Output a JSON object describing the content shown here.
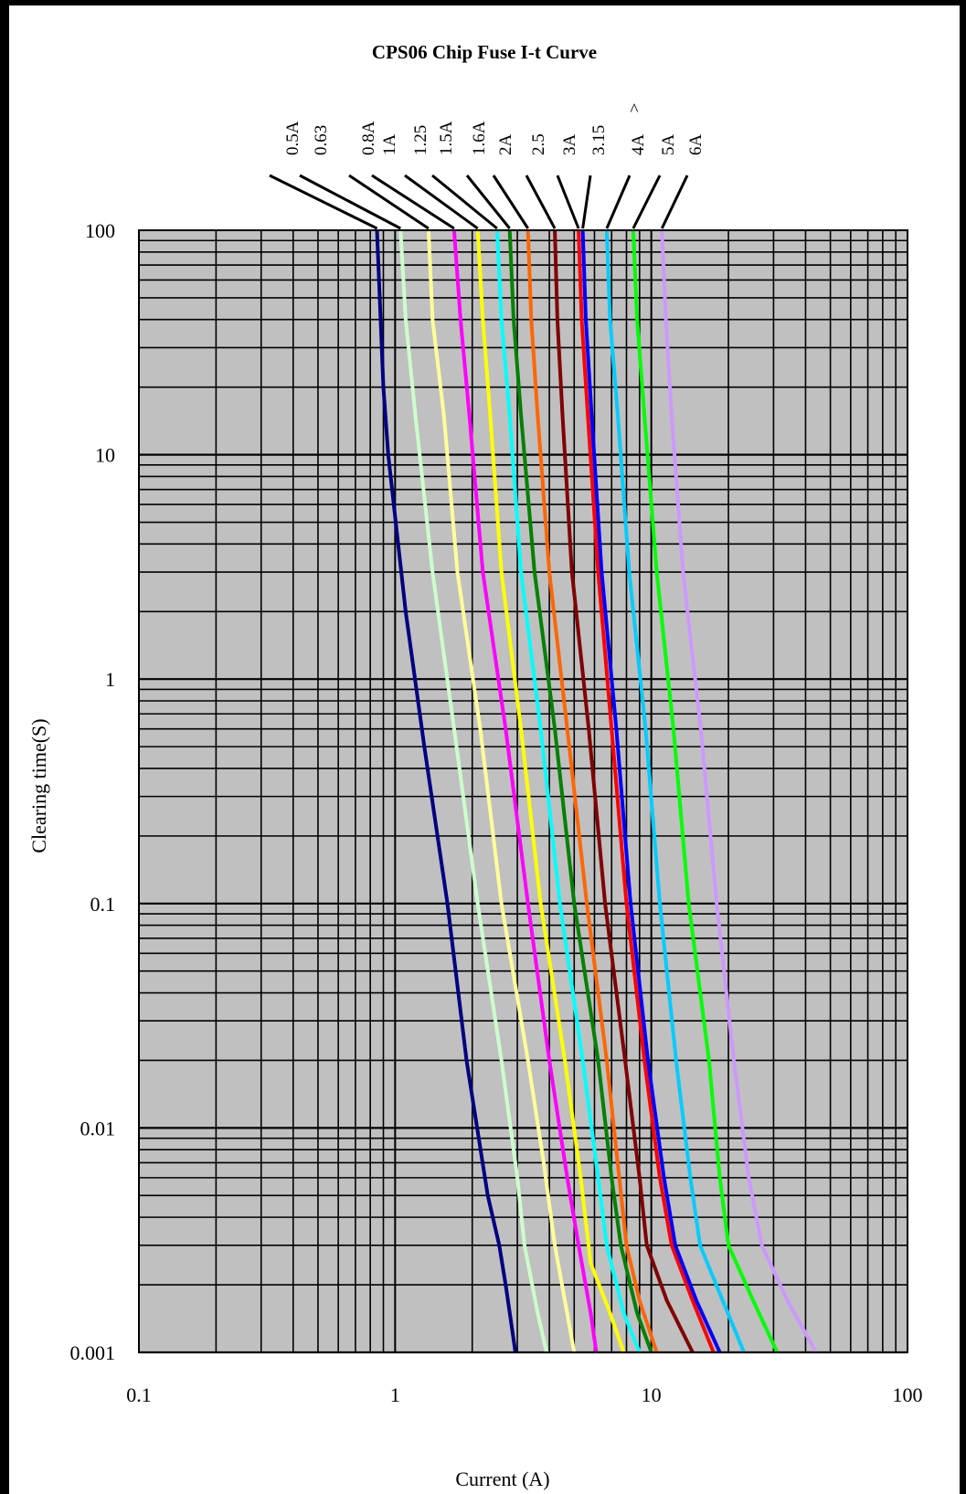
{
  "chart_data": {
    "type": "line",
    "title": "CPS06   Chip Fuse I-t Curve",
    "xlabel": "Current (A)",
    "ylabel": "Clearing time(S)",
    "x_scale": "log",
    "y_scale": "log",
    "xlim": [
      0.1,
      100
    ],
    "ylim": [
      0.001,
      100
    ],
    "x_ticks": [
      "0.1",
      "1",
      "10",
      "100"
    ],
    "y_ticks": [
      "0.001",
      "0.01",
      "0.1",
      "1",
      "10",
      "100"
    ],
    "grid": true,
    "legend": "leader-line labels above plot",
    "plot_background": "#c0c0c0",
    "series": [
      {
        "name": "0.5A",
        "color": "#000080",
        "points": [
          [
            0.85,
            100
          ],
          [
            0.9,
            20
          ],
          [
            0.94,
            10
          ],
          [
            1.1,
            2
          ],
          [
            1.3,
            0.5
          ],
          [
            1.6,
            0.1
          ],
          [
            1.9,
            0.02
          ],
          [
            2.3,
            0.005
          ],
          [
            2.55,
            0.003
          ],
          [
            2.7,
            0.002
          ],
          [
            2.95,
            0.001
          ]
        ]
      },
      {
        "name": "0.63",
        "color": "#ccffcc",
        "points": [
          [
            1.05,
            100
          ],
          [
            1.1,
            40
          ],
          [
            1.2,
            15
          ],
          [
            1.4,
            3
          ],
          [
            1.7,
            0.6
          ],
          [
            2.1,
            0.1
          ],
          [
            2.6,
            0.02
          ],
          [
            3.0,
            0.006
          ],
          [
            3.2,
            0.003
          ],
          [
            3.6,
            0.0015
          ],
          [
            3.9,
            0.001
          ]
        ]
      },
      {
        "name": "0.8A",
        "color": "#ffff99",
        "points": [
          [
            1.35,
            100
          ],
          [
            1.4,
            40
          ],
          [
            1.55,
            15
          ],
          [
            1.75,
            3
          ],
          [
            2.15,
            0.6
          ],
          [
            2.6,
            0.1
          ],
          [
            3.3,
            0.02
          ],
          [
            3.8,
            0.007
          ],
          [
            4.2,
            0.003
          ],
          [
            4.6,
            0.0017
          ],
          [
            5.0,
            0.001
          ]
        ]
      },
      {
        "name": "1A",
        "color": "#ff00ff",
        "points": [
          [
            1.7,
            100
          ],
          [
            1.8,
            40
          ],
          [
            1.95,
            15
          ],
          [
            2.2,
            3
          ],
          [
            2.7,
            0.6
          ],
          [
            3.3,
            0.1
          ],
          [
            4.0,
            0.02
          ],
          [
            4.7,
            0.006
          ],
          [
            5.2,
            0.003
          ],
          [
            5.8,
            0.0015
          ],
          [
            6.1,
            0.001
          ]
        ]
      },
      {
        "name": "1.25",
        "color": "#ffff00",
        "points": [
          [
            2.1,
            100
          ],
          [
            2.2,
            40
          ],
          [
            2.35,
            15
          ],
          [
            2.6,
            3
          ],
          [
            3.1,
            0.6
          ],
          [
            3.7,
            0.1
          ],
          [
            4.6,
            0.02
          ],
          [
            5.3,
            0.006
          ],
          [
            5.8,
            0.0025
          ],
          [
            6.9,
            0.0015
          ],
          [
            7.8,
            0.001
          ]
        ]
      },
      {
        "name": "1.5A",
        "color": "#00ffff",
        "points": [
          [
            2.5,
            100
          ],
          [
            2.6,
            40
          ],
          [
            2.8,
            15
          ],
          [
            3.1,
            3
          ],
          [
            3.7,
            0.6
          ],
          [
            4.4,
            0.1
          ],
          [
            5.4,
            0.02
          ],
          [
            6.2,
            0.006
          ],
          [
            6.7,
            0.003
          ],
          [
            7.8,
            0.0015
          ],
          [
            9.0,
            0.001
          ]
        ]
      },
      {
        "name": "1.6A",
        "color": "#008000",
        "points": [
          [
            2.8,
            100
          ],
          [
            2.9,
            40
          ],
          [
            3.1,
            15
          ],
          [
            3.5,
            3
          ],
          [
            4.2,
            0.6
          ],
          [
            5.0,
            0.1
          ],
          [
            6.2,
            0.02
          ],
          [
            7.0,
            0.006
          ],
          [
            7.6,
            0.003
          ],
          [
            8.8,
            0.0015
          ],
          [
            10.0,
            0.001
          ]
        ]
      },
      {
        "name": "2A",
        "color": "#ff6600",
        "points": [
          [
            3.3,
            100
          ],
          [
            3.4,
            40
          ],
          [
            3.6,
            15
          ],
          [
            4.0,
            3
          ],
          [
            4.7,
            0.6
          ],
          [
            5.6,
            0.1
          ],
          [
            6.7,
            0.02
          ],
          [
            7.5,
            0.006
          ],
          [
            8.0,
            0.003
          ],
          [
            9.0,
            0.0017
          ],
          [
            10.5,
            0.001
          ]
        ]
      },
      {
        "name": "2.5",
        "color": "#800000",
        "points": [
          [
            4.2,
            100
          ],
          [
            4.3,
            40
          ],
          [
            4.5,
            15
          ],
          [
            4.9,
            3
          ],
          [
            5.7,
            0.6
          ],
          [
            6.6,
            0.1
          ],
          [
            7.9,
            0.02
          ],
          [
            9.0,
            0.006
          ],
          [
            9.6,
            0.003
          ],
          [
            11.5,
            0.0017
          ],
          [
            14.5,
            0.001
          ]
        ]
      },
      {
        "name": "3A",
        "color": "#ff0000",
        "points": [
          [
            5.2,
            100
          ],
          [
            5.35,
            40
          ],
          [
            5.65,
            15
          ],
          [
            6.2,
            3
          ],
          [
            7.0,
            0.6
          ],
          [
            8.0,
            0.1
          ],
          [
            9.4,
            0.02
          ],
          [
            10.8,
            0.006
          ],
          [
            12.0,
            0.003
          ],
          [
            14.5,
            0.0017
          ],
          [
            17.5,
            0.001
          ]
        ]
      },
      {
        "name": "3.15",
        "color": "#0000ff",
        "points": [
          [
            5.4,
            100
          ],
          [
            5.55,
            40
          ],
          [
            5.85,
            15
          ],
          [
            6.4,
            3
          ],
          [
            7.3,
            0.6
          ],
          [
            8.3,
            0.1
          ],
          [
            9.7,
            0.02
          ],
          [
            11.2,
            0.006
          ],
          [
            12.4,
            0.003
          ],
          [
            15.0,
            0.0017
          ],
          [
            18.5,
            0.001
          ]
        ]
      },
      {
        "name": "4A",
        "color": "#00ccff",
        "points": [
          [
            6.7,
            100
          ],
          [
            6.9,
            40
          ],
          [
            7.4,
            15
          ],
          [
            8.2,
            3
          ],
          [
            9.5,
            0.6
          ],
          [
            10.8,
            0.1
          ],
          [
            12.5,
            0.02
          ],
          [
            14.2,
            0.006
          ],
          [
            15.5,
            0.003
          ],
          [
            19.0,
            0.0017
          ],
          [
            23.0,
            0.001
          ]
        ]
      },
      {
        "name": "5A",
        "color": "#00ff00",
        "points": [
          [
            8.5,
            100
          ],
          [
            8.8,
            40
          ],
          [
            9.4,
            15
          ],
          [
            10.5,
            3
          ],
          [
            12.2,
            0.6
          ],
          [
            14.0,
            0.1
          ],
          [
            16.8,
            0.02
          ],
          [
            18.5,
            0.006
          ],
          [
            20.0,
            0.003
          ],
          [
            25.0,
            0.0017
          ],
          [
            31.0,
            0.001
          ]
        ]
      },
      {
        "name": "6A",
        "color": "#cc99ff",
        "points": [
          [
            11.0,
            100
          ],
          [
            11.4,
            40
          ],
          [
            12.0,
            15
          ],
          [
            13.3,
            3
          ],
          [
            15.6,
            0.6
          ],
          [
            18.0,
            0.1
          ],
          [
            21.0,
            0.02
          ],
          [
            24.0,
            0.006
          ],
          [
            27.0,
            0.003
          ],
          [
            34.0,
            0.0017
          ],
          [
            44.0,
            0.001
          ]
        ]
      }
    ]
  },
  "series_label_lines": [
    "0.5A",
    "0.63",
    "0.8A",
    "1A",
    "1.25",
    "1.5A",
    "1.6A",
    "2A",
    "2.5",
    "3A",
    "3.15",
    "4A",
    "5A",
    "6A"
  ],
  "caret_mark": "^"
}
